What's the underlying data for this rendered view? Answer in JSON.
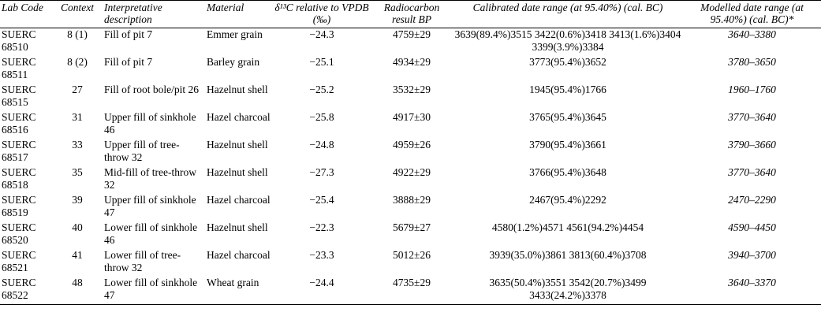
{
  "table": {
    "header": [
      "Lab Code",
      "Context",
      "Interpretative description",
      "Material",
      "δ¹³C relative to VPDB (‰)",
      "Radiocarbon result BP",
      "Calibrated date range (at 95.40%) (cal. BC)",
      "Modelled date range (at 95.40%) (cal. BC)*"
    ],
    "rows": [
      [
        "SUERC 68510",
        "8 (1)",
        "Fill of pit 7",
        "Emmer grain",
        "−24.3",
        "4759±29",
        "3639(89.4%)3515 3422(0.6%)3418 3413(1.6%)3404 3399(3.9%)3384",
        "3640–3380"
      ],
      [
        "SUERC 68511",
        "8 (2)",
        "Fill of pit 7",
        "Barley grain",
        "−25.1",
        "4934±29",
        "3773(95.4%)3652",
        "3780–3650"
      ],
      [
        "SUERC 68515",
        "27",
        "Fill of root bole/pit 26",
        "Hazelnut shell",
        "−25.2",
        "3532±29",
        "1945(95.4%)1766",
        "1960–1760"
      ],
      [
        "SUERC 68516",
        "31",
        "Upper fill of sinkhole 46",
        "Hazel charcoal",
        "−25.8",
        "4917±30",
        "3765(95.4%)3645",
        "3770–3640"
      ],
      [
        "SUERC 68517",
        "33",
        "Upper fill of tree-throw 32",
        "Hazelnut shell",
        "−24.8",
        "4959±26",
        "3790(95.4%)3661",
        "3790–3660"
      ],
      [
        "SUERC 68518",
        "35",
        "Mid-fill of tree-throw 32",
        "Hazelnut shell",
        "−27.3",
        "4922±29",
        "3766(95.4%)3648",
        "3770–3640"
      ],
      [
        "SUERC 68519",
        "39",
        "Upper fill of sinkhole 47",
        "Hazel charcoal",
        "−25.4",
        "3888±29",
        "2467(95.4%)2292",
        "2470–2290"
      ],
      [
        "SUERC 68520",
        "40",
        "Lower fill of sinkhole 46",
        "Hazelnut shell",
        "−22.3",
        "5679±27",
        "4580(1.2%)4571 4561(94.2%)4454",
        "4590–4450"
      ],
      [
        "SUERC 68521",
        "41",
        "Lower fill of tree-throw 32",
        "Hazel charcoal",
        "−23.3",
        "5012±26",
        "3939(35.0%)3861 3813(60.4%)3708",
        "3940–3700"
      ],
      [
        "SUERC 68522",
        "48",
        "Lower fill of sinkhole 47",
        "Wheat grain",
        "−24.4",
        "4735±29",
        "3635(50.4%)3551 3542(20.7%)3499 3433(24.2%)3378",
        "3640–3370"
      ]
    ]
  }
}
